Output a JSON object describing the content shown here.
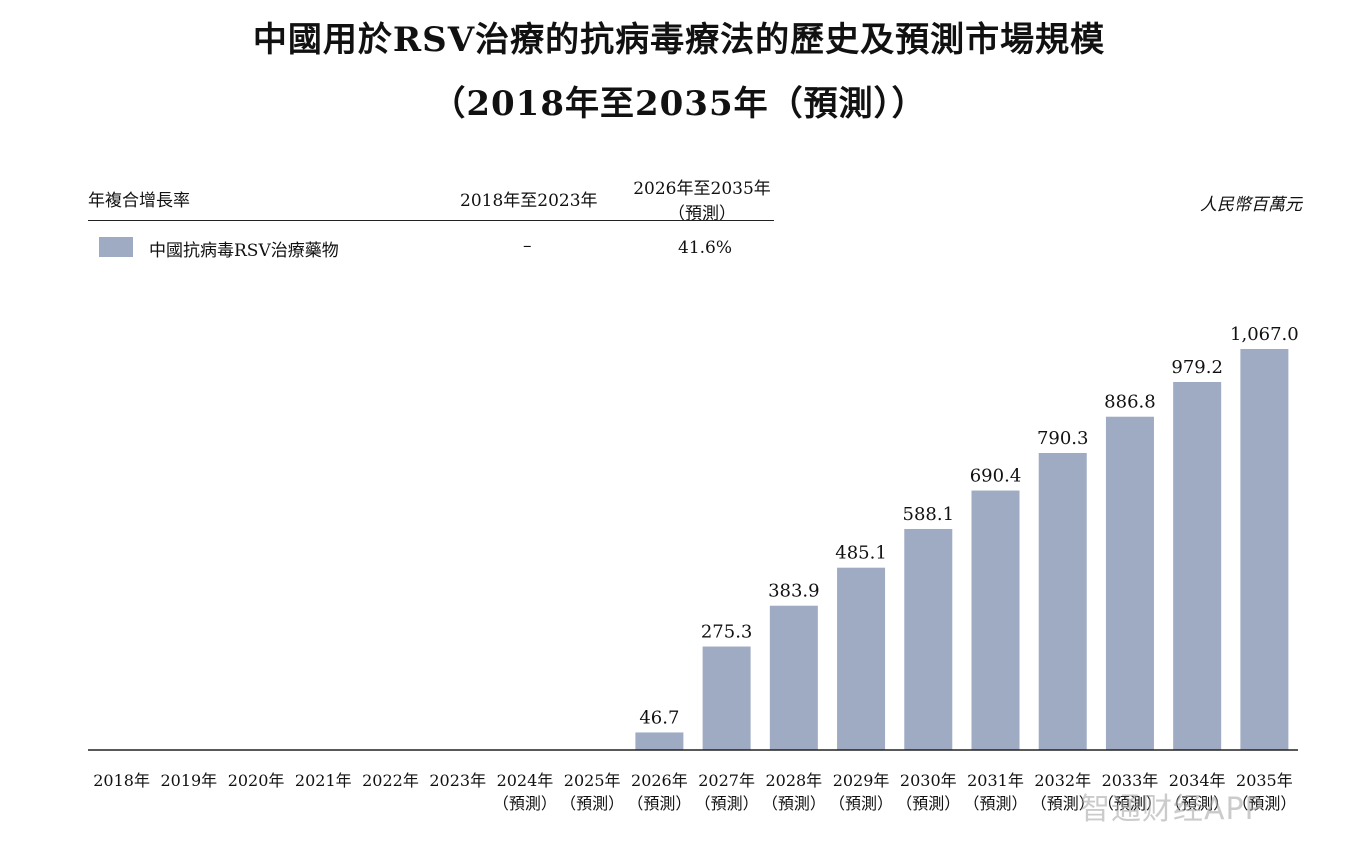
{
  "title_line1": "中國用於RSV治療的抗病毒療法的歷史及預測市場規模",
  "title_line2": "（2018年至2035年（預測））",
  "cagr_table": {
    "header_label": "年複合增長率",
    "col1_header": "2018年至2023年",
    "col2_header_line1": "2026年至2035年",
    "col2_header_line2": "（預測）",
    "row_label": "中國抗病毒RSV治療藥物",
    "row_col1": "–",
    "row_col2": "41.6%"
  },
  "unit_label": "人民幣百萬元",
  "watermark": "智通财经APP",
  "colors": {
    "bar": "#9eabc3",
    "axis": "#222222"
  },
  "chart_data": {
    "type": "bar",
    "title": "中國用於RSV治療的抗病毒療法的歷史及預測市場規模",
    "ylabel": "人民幣百萬元",
    "categories": [
      "2018年",
      "2019年",
      "2020年",
      "2021年",
      "2022年",
      "2023年",
      "2024年",
      "2025年",
      "2026年",
      "2027年",
      "2028年",
      "2029年",
      "2030年",
      "2031年",
      "2032年",
      "2033年",
      "2034年",
      "2035年"
    ],
    "category_sublabels": [
      "",
      "",
      "",
      "",
      "",
      "",
      "（預測）",
      "（預測）",
      "（預測）",
      "（預測）",
      "（預測）",
      "（預測）",
      "（預測）",
      "（預測）",
      "（預測）",
      "（預測）",
      "（預測）",
      "（預測）"
    ],
    "series": [
      {
        "name": "中國抗病毒RSV治療藥物",
        "values": [
          0,
          0,
          0,
          0,
          0,
          0,
          0,
          0,
          46.7,
          275.3,
          383.9,
          485.1,
          588.1,
          690.4,
          790.3,
          886.8,
          979.2,
          1067.0
        ]
      }
    ],
    "data_labels": [
      "",
      "",
      "",
      "",
      "",
      "",
      "",
      "",
      "46.7",
      "275.3",
      "383.9",
      "485.1",
      "588.1",
      "690.4",
      "790.3",
      "886.8",
      "979.2",
      "1,067.0"
    ],
    "ylim": [
      0,
      1067.0
    ],
    "grid": false,
    "legend": "top-left"
  }
}
